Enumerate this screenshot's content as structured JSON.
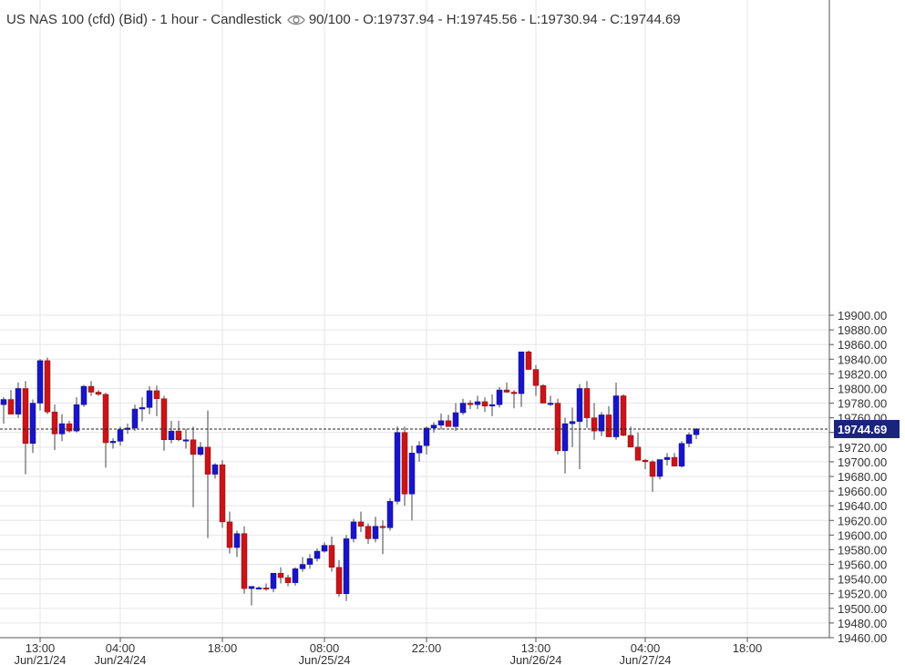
{
  "header": {
    "instrument": "US NAS 100 (cfd) (Bid)",
    "timeframe": "1 hour",
    "chart_type": "Candlestick",
    "score": "90/100",
    "ohlc": "O:19737.94 - H:19745.56 - L:19730.94 - C:19744.69"
  },
  "colors": {
    "up": "#1a14c8",
    "down": "#c8141a",
    "wick": "#444444",
    "grid": "#e6e6e6",
    "price_tag": "#1a237e"
  },
  "chart_data": {
    "type": "candlestick",
    "ylim": [
      19460,
      19900
    ],
    "yticks": [
      19460,
      19480,
      19500,
      19520,
      19540,
      19560,
      19580,
      19600,
      19620,
      19640,
      19660,
      19680,
      19700,
      19720,
      19740,
      19760,
      19780,
      19800,
      19820,
      19840,
      19860,
      19880,
      19900
    ],
    "x_ticks": [
      {
        "time": "13:00",
        "date": "Jun/21/24",
        "index": 5
      },
      {
        "time": "04:00",
        "date": "Jun/24/24",
        "index": 16
      },
      {
        "time": "18:00",
        "date": "",
        "index": 30
      },
      {
        "time": "08:00",
        "date": "Jun/25/24",
        "index": 44
      },
      {
        "time": "22:00",
        "date": "",
        "index": 58
      },
      {
        "time": "13:00",
        "date": "Jun/26/24",
        "index": 73
      },
      {
        "time": "04:00",
        "date": "Jun/27/24",
        "index": 88
      },
      {
        "time": "18:00",
        "date": "",
        "index": 102
      }
    ],
    "last_price": 19744.69,
    "last_price_label": "19744.69",
    "grid": true,
    "candles": [
      [
        19778,
        19788,
        19752,
        19785
      ],
      [
        19785,
        19798,
        19765,
        19765
      ],
      [
        19765,
        19808,
        19760,
        19800
      ],
      [
        19800,
        19810,
        19683,
        19725
      ],
      [
        19725,
        19785,
        19712,
        19780
      ],
      [
        19780,
        19840,
        19770,
        19838
      ],
      [
        19838,
        19842,
        19765,
        19768
      ],
      [
        19768,
        19778,
        19716,
        19738
      ],
      [
        19738,
        19765,
        19728,
        19752
      ],
      [
        19752,
        19756,
        19740,
        19742
      ],
      [
        19742,
        19788,
        19740,
        19778
      ],
      [
        19778,
        19805,
        19775,
        19803
      ],
      [
        19803,
        19810,
        19790,
        19795
      ],
      [
        19795,
        19798,
        19790,
        19792
      ],
      [
        19792,
        19794,
        19692,
        19726
      ],
      [
        19726,
        19732,
        19718,
        19728
      ],
      [
        19728,
        19748,
        19722,
        19744
      ],
      [
        19744,
        19752,
        19738,
        19746
      ],
      [
        19746,
        19778,
        19742,
        19772
      ],
      [
        19772,
        19788,
        19755,
        19774
      ],
      [
        19774,
        19803,
        19765,
        19797
      ],
      [
        19797,
        19804,
        19762,
        19786
      ],
      [
        19786,
        19790,
        19715,
        19730
      ],
      [
        19730,
        19756,
        19725,
        19742
      ],
      [
        19742,
        19756,
        19728,
        19730
      ],
      [
        19730,
        19745,
        19718,
        19730
      ],
      [
        19730,
        19748,
        19638,
        19710
      ],
      [
        19710,
        19727,
        19708,
        19720
      ],
      [
        19720,
        19770,
        19596,
        19683
      ],
      [
        19683,
        19698,
        19677,
        19696
      ],
      [
        19696,
        19702,
        19610,
        19618
      ],
      [
        19618,
        19632,
        19575,
        19583
      ],
      [
        19583,
        19606,
        19570,
        19602
      ],
      [
        19602,
        19612,
        19520,
        19527
      ],
      [
        19527,
        19530,
        19504,
        19530
      ],
      [
        19528,
        19530,
        19526,
        19528
      ],
      [
        19528,
        19534,
        19524,
        19527
      ],
      [
        19527,
        19546,
        19522,
        19548
      ],
      [
        19548,
        19556,
        19534,
        19542
      ],
      [
        19542,
        19546,
        19530,
        19535
      ],
      [
        19535,
        19556,
        19531,
        19554
      ],
      [
        19554,
        19570,
        19550,
        19560
      ],
      [
        19560,
        19574,
        19554,
        19568
      ],
      [
        19568,
        19582,
        19564,
        19578
      ],
      [
        19578,
        19590,
        19576,
        19586
      ],
      [
        19586,
        19598,
        19550,
        19556
      ],
      [
        19556,
        19566,
        19516,
        19520
      ],
      [
        19520,
        19600,
        19510,
        19595
      ],
      [
        19595,
        19622,
        19590,
        19618
      ],
      [
        19618,
        19632,
        19604,
        19612
      ],
      [
        19612,
        19616,
        19588,
        19595
      ],
      [
        19595,
        19625,
        19590,
        19612
      ],
      [
        19612,
        19620,
        19574,
        19610
      ],
      [
        19610,
        19650,
        19606,
        19646
      ],
      [
        19646,
        19748,
        19642,
        19740
      ],
      [
        19740,
        19748,
        19640,
        19656
      ],
      [
        19656,
        19722,
        19620,
        19712
      ],
      [
        19712,
        19728,
        19700,
        19722
      ],
      [
        19722,
        19748,
        19710,
        19746
      ],
      [
        19746,
        19754,
        19740,
        19750
      ],
      [
        19750,
        19766,
        19744,
        19756
      ],
      [
        19756,
        19764,
        19748,
        19748
      ],
      [
        19748,
        19780,
        19742,
        19767
      ],
      [
        19767,
        19786,
        19764,
        19780
      ],
      [
        19780,
        19784,
        19772,
        19778
      ],
      [
        19778,
        19790,
        19772,
        19782
      ],
      [
        19782,
        19788,
        19768,
        19776
      ],
      [
        19776,
        19792,
        19762,
        19778
      ],
      [
        19778,
        19802,
        19774,
        19798
      ],
      [
        19798,
        19808,
        19794,
        19795
      ],
      [
        19795,
        19798,
        19773,
        19793
      ],
      [
        19793,
        19850,
        19775,
        19850
      ],
      [
        19850,
        19852,
        19826,
        19826
      ],
      [
        19826,
        19832,
        19790,
        19804
      ],
      [
        19804,
        19806,
        19780,
        19780
      ],
      [
        19780,
        19790,
        19776,
        19780
      ],
      [
        19780,
        19786,
        19710,
        19715
      ],
      [
        19715,
        19760,
        19684,
        19752
      ],
      [
        19752,
        19774,
        19720,
        19755
      ],
      [
        19755,
        19806,
        19690,
        19800
      ],
      [
        19800,
        19810,
        19746,
        19760
      ],
      [
        19760,
        19780,
        19730,
        19742
      ],
      [
        19742,
        19768,
        19735,
        19764
      ],
      [
        19764,
        19776,
        19735,
        19734
      ],
      [
        19734,
        19808,
        19730,
        19790
      ],
      [
        19790,
        19792,
        19735,
        19736
      ],
      [
        19736,
        19748,
        19724,
        19720
      ],
      [
        19720,
        19740,
        19705,
        19702
      ],
      [
        19702,
        19704,
        19690,
        19700
      ],
      [
        19700,
        19702,
        19659,
        19680
      ],
      [
        19680,
        19702,
        19676,
        19703
      ],
      [
        19703,
        19712,
        19695,
        19706
      ],
      [
        19706,
        19712,
        19696,
        19694
      ],
      [
        19694,
        19728,
        19692,
        19725
      ],
      [
        19725,
        19740,
        19720,
        19737
      ],
      [
        19737,
        19746,
        19731,
        19745
      ]
    ]
  }
}
